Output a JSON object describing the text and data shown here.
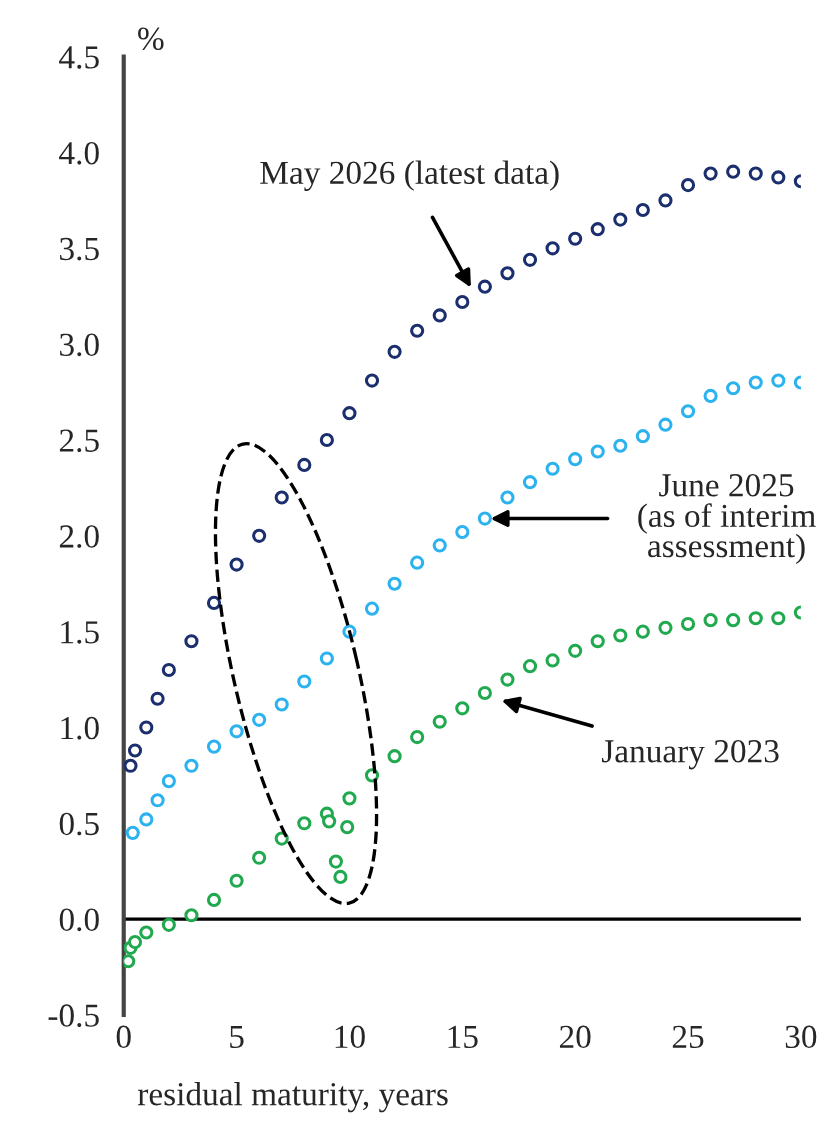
{
  "chart_data": {
    "type": "scatter",
    "ylabel": "%",
    "xlabel": "residual maturity, years",
    "xlim": [
      0,
      30
    ],
    "xticks": [
      0,
      5,
      10,
      15,
      20,
      25,
      30
    ],
    "ylim": [
      -0.5,
      4.5
    ],
    "yticks": [
      {
        "value": -0.5,
        "label": "-0.5"
      },
      {
        "value": 0,
        "label": "0.0"
      },
      {
        "value": 0.5,
        "label": "0.5"
      },
      {
        "value": 1,
        "label": "1.0"
      },
      {
        "value": 1.5,
        "label": "1.5"
      },
      {
        "value": 2,
        "label": "2.0"
      },
      {
        "value": 2.5,
        "label": "2.5"
      },
      {
        "value": 3,
        "label": "3.0"
      },
      {
        "value": 3.5,
        "label": "3.5"
      },
      {
        "value": 4,
        "label": "4.0"
      },
      {
        "value": 4.5,
        "label": "4.5"
      }
    ],
    "marker": "circle",
    "grid": false,
    "legend": false,
    "ref_lines": [
      {
        "axis": "y",
        "value": 0,
        "color": "#000000"
      }
    ],
    "series": [
      {
        "color": "#1b2f6e",
        "x": [
          0.3,
          0.5,
          1,
          1.5,
          2,
          3,
          4,
          5,
          6,
          7,
          8,
          9,
          10,
          11,
          12,
          13,
          14,
          15,
          16,
          17,
          18,
          19,
          20,
          21,
          22,
          23,
          24,
          25,
          26,
          27,
          28,
          29,
          30
        ],
        "values": [
          0.8,
          0.88,
          1.0,
          1.15,
          1.3,
          1.45,
          1.65,
          1.85,
          2.0,
          2.2,
          2.37,
          2.5,
          2.64,
          2.81,
          2.96,
          3.07,
          3.15,
          3.22,
          3.3,
          3.37,
          3.44,
          3.5,
          3.55,
          3.6,
          3.65,
          3.7,
          3.75,
          3.83,
          3.89,
          3.9,
          3.89,
          3.87,
          3.85
        ]
      },
      {
        "color": "#2cb3ef",
        "x": [
          0.4,
          1,
          1.5,
          2,
          3,
          4,
          5,
          6,
          7,
          8,
          9,
          10,
          11,
          12,
          13,
          14,
          15,
          16,
          17,
          18,
          19,
          20,
          21,
          22,
          23,
          24,
          25,
          26,
          27,
          28,
          29,
          30
        ],
        "values": [
          0.45,
          0.52,
          0.62,
          0.72,
          0.8,
          0.9,
          0.98,
          1.04,
          1.12,
          1.24,
          1.36,
          1.5,
          1.62,
          1.75,
          1.86,
          1.95,
          2.02,
          2.09,
          2.2,
          2.28,
          2.35,
          2.4,
          2.44,
          2.47,
          2.52,
          2.58,
          2.65,
          2.73,
          2.77,
          2.8,
          2.81,
          2.8
        ]
      },
      {
        "color": "#20a94e",
        "x": [
          0.2,
          0.3,
          0.5,
          1,
          2,
          3,
          4,
          5,
          6,
          7,
          8,
          9,
          9.1,
          9.4,
          9.6,
          9.9,
          10,
          11,
          12,
          13,
          14,
          15,
          16,
          17,
          18,
          19,
          20,
          21,
          22,
          23,
          24,
          25,
          26,
          27,
          28,
          29,
          30
        ],
        "values": [
          -0.22,
          -0.15,
          -0.12,
          -0.07,
          -0.03,
          0.02,
          0.1,
          0.2,
          0.32,
          0.42,
          0.5,
          0.55,
          0.51,
          0.3,
          0.22,
          0.48,
          0.63,
          0.75,
          0.85,
          0.95,
          1.03,
          1.1,
          1.18,
          1.25,
          1.32,
          1.35,
          1.4,
          1.45,
          1.48,
          1.5,
          1.52,
          1.54,
          1.56,
          1.56,
          1.57,
          1.57,
          1.6
        ]
      }
    ],
    "annotations": [
      {
        "text": "May 2026 (latest data)",
        "x": 15.5,
        "y": 3.27
      },
      {
        "text": "June 2025\n(as of interim\nassessment)",
        "x": 16,
        "y": 2.09
      },
      {
        "text": "January 2023",
        "x": 16.5,
        "y": 1.15
      }
    ]
  }
}
